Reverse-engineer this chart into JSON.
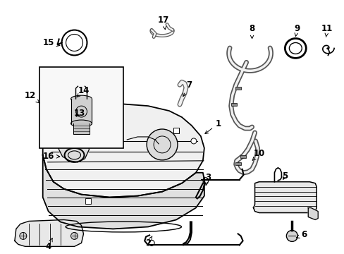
{
  "background_color": "#ffffff",
  "line_color": "#000000",
  "font_size": 8.5,
  "fig_width": 4.89,
  "fig_height": 3.6,
  "dpi": 100
}
